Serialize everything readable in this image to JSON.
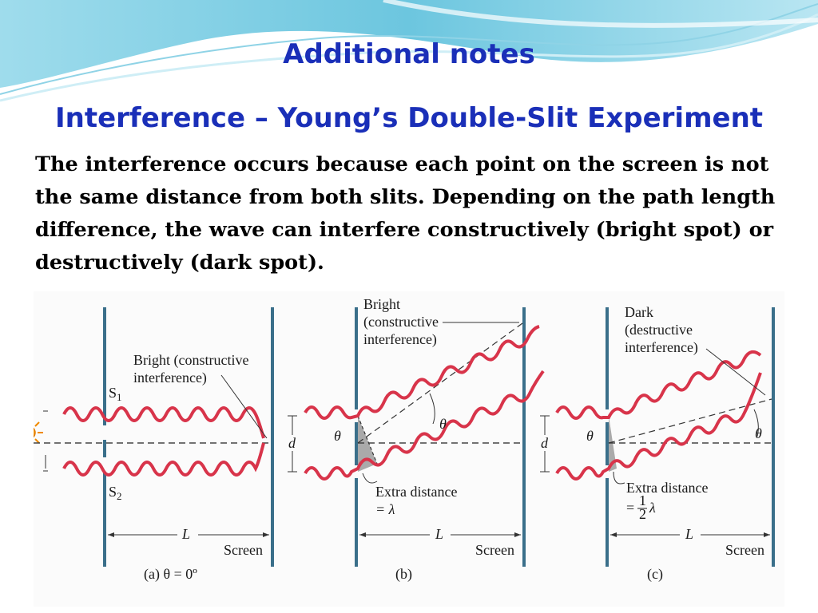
{
  "slide": {
    "title": "Additional notes",
    "subtitle": "Interference – Young’s Double-Slit Experiment",
    "body": "The interference occurs because each point on the screen is not the same distance from both slits. Depending on the path length difference, the wave can interfere constructively (bright spot) or destructively (dark spot)."
  },
  "panel_a": {
    "source_1": "S",
    "source_1_sub": "1",
    "source_2": "S",
    "source_2_sub": "2",
    "note_line1": "Bright (constructive",
    "note_line2": "interference)",
    "length": "L",
    "screen": "Screen",
    "caption": "(a) θ = 0º"
  },
  "panel_b": {
    "note_line1": "Bright",
    "note_line2": "(constructive",
    "note_line3": "interference)",
    "theta": "θ",
    "d": "d",
    "extra_line1": "Extra distance",
    "extra_line2": "= λ",
    "length": "L",
    "screen": "Screen",
    "caption": "(b)"
  },
  "panel_c": {
    "note_line1": "Dark",
    "note_line2": "(destructive",
    "note_line3": "interference)",
    "theta": "θ",
    "d": "d",
    "extra_line1": "Extra distance",
    "extra_eq": "=",
    "extra_frac_num": "1",
    "extra_frac_den": "2",
    "extra_lambda": "λ",
    "length": "L",
    "screen": "Screen",
    "caption": "(c)"
  },
  "colors": {
    "title": "#1a2fb8",
    "wave": "#d8344a",
    "slit_wall": "#3a6f8a",
    "header_wave": "#7fd0e6"
  },
  "icons": {
    "light_source": "sun-icon"
  }
}
